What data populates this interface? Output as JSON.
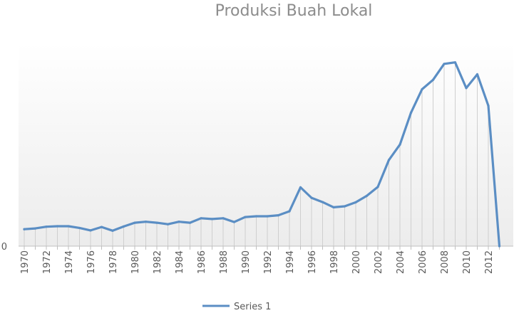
{
  "chart_data": {
    "type": "line",
    "title": "Produksi Buah Lokal",
    "xlabel": "",
    "ylabel": "",
    "x": [
      1970,
      1971,
      1972,
      1973,
      1974,
      1975,
      1976,
      1977,
      1978,
      1979,
      1980,
      1981,
      1982,
      1983,
      1984,
      1985,
      1986,
      1987,
      1988,
      1989,
      1990,
      1991,
      1992,
      1993,
      1994,
      1995,
      1996,
      1997,
      1998,
      1999,
      2000,
      2001,
      2002,
      2003,
      2004,
      2005,
      2006,
      2007,
      2008,
      2009,
      2010,
      2011,
      2012,
      2013
    ],
    "x_tick_labels": [
      "1970",
      "1972",
      "1974",
      "1976",
      "1978",
      "1980",
      "1982",
      "1984",
      "1986",
      "1988",
      "1990",
      "1992",
      "1994",
      "1996",
      "1998",
      "2000",
      "2002",
      "2004",
      "2006",
      "2008",
      "2010",
      "2012"
    ],
    "y_tick_labels": [
      "0",
      "",
      "",
      " ",
      " ",
      " ",
      " ",
      " ",
      " "
    ],
    "ylim": [
      0,
      8
    ],
    "grid": false,
    "legend_position": "bottom",
    "series": [
      {
        "name": "Series 1",
        "color": "#5b8ec4",
        "values": [
          0.68,
          0.71,
          0.78,
          0.8,
          0.8,
          0.73,
          0.63,
          0.77,
          0.62,
          0.79,
          0.94,
          0.98,
          0.94,
          0.88,
          0.98,
          0.94,
          1.12,
          1.09,
          1.12,
          0.97,
          1.17,
          1.2,
          1.2,
          1.24,
          1.4,
          2.36,
          1.94,
          1.77,
          1.56,
          1.6,
          1.76,
          2.02,
          2.38,
          3.46,
          4.08,
          5.36,
          6.3,
          6.68,
          7.32,
          7.38,
          6.35,
          6.9,
          5.64,
          0.0
        ]
      }
    ]
  }
}
